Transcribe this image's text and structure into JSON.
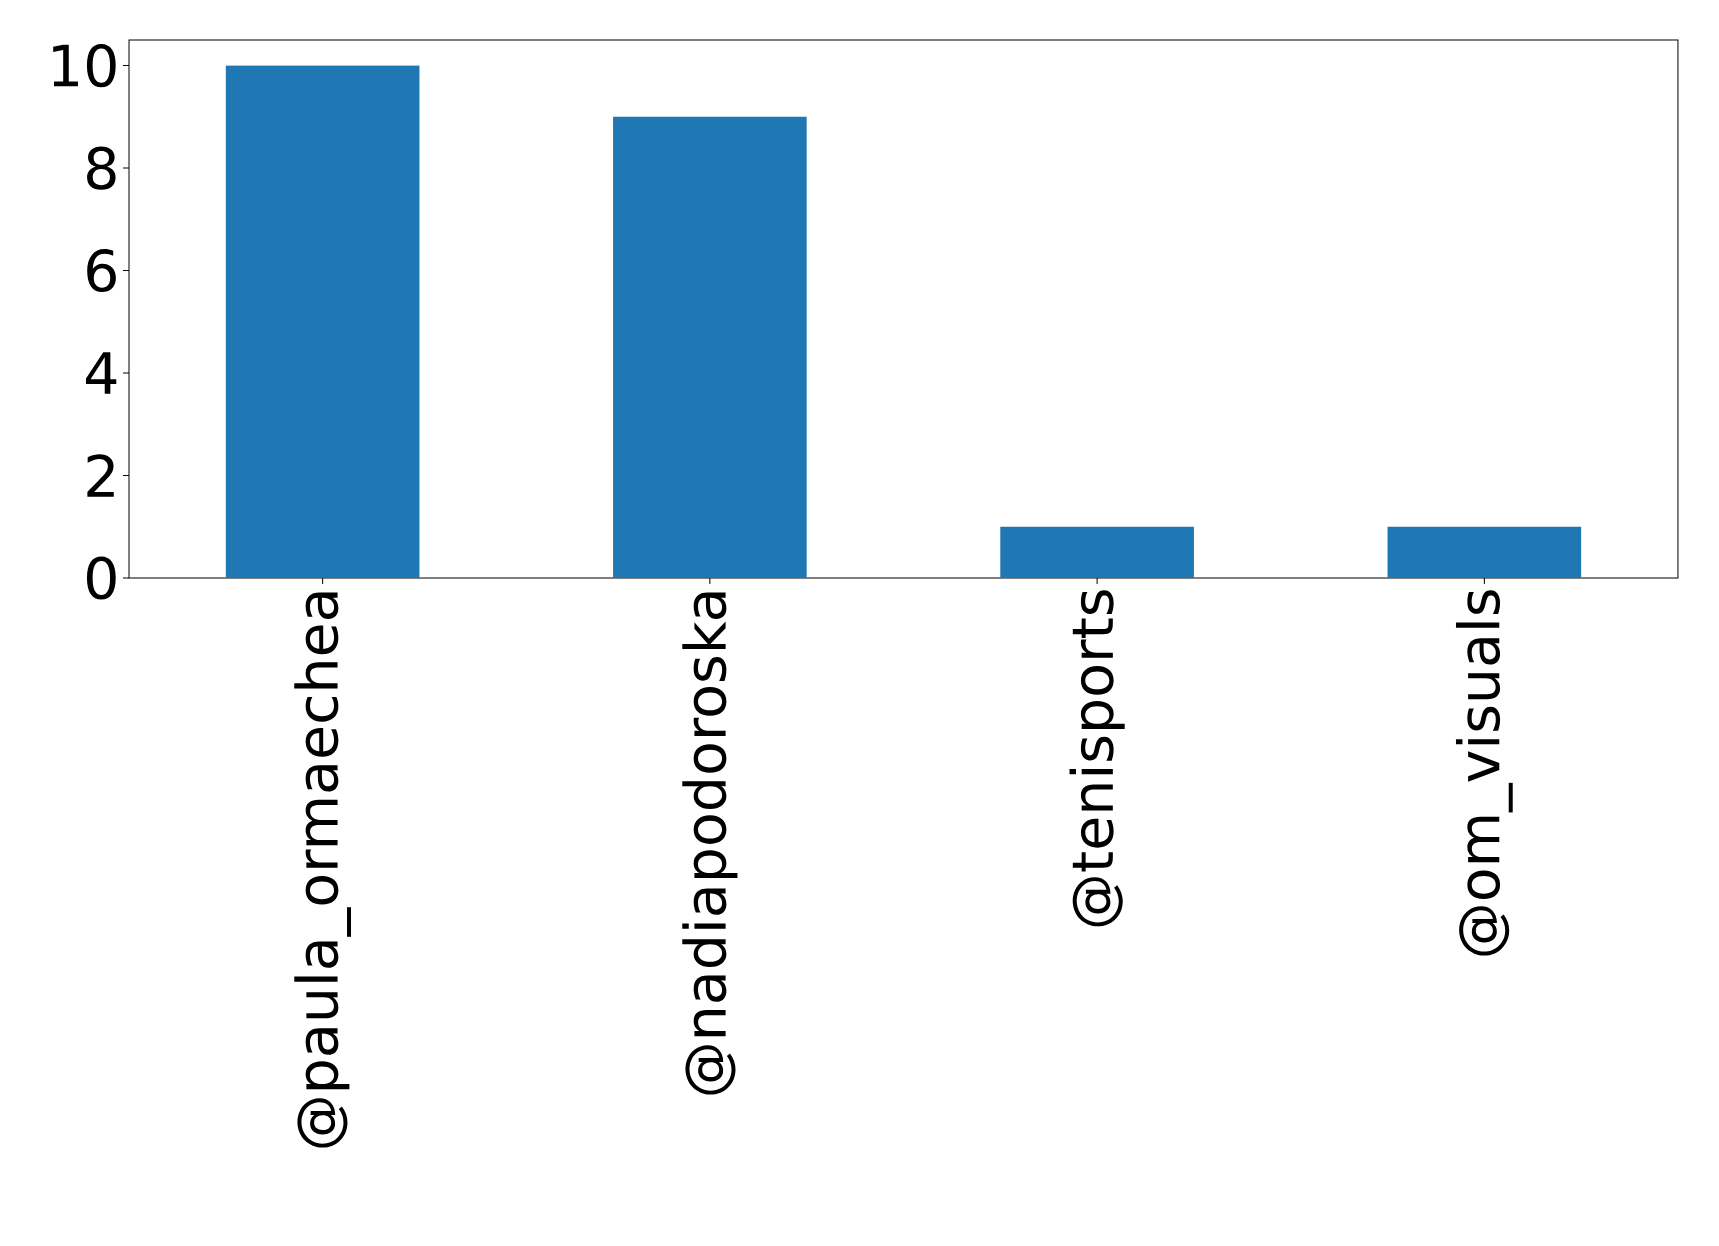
{
  "chart_data": {
    "type": "bar",
    "categories": [
      "@paula_ormaechea",
      "@nadiapodoroska",
      "@tenisports",
      "@om_visuals"
    ],
    "values": [
      10,
      9,
      1,
      1
    ],
    "color": "#1f77b4",
    "ylim": [
      0,
      10.5
    ],
    "yticks": [
      0,
      2,
      4,
      6,
      8,
      10
    ],
    "grid": false
  }
}
